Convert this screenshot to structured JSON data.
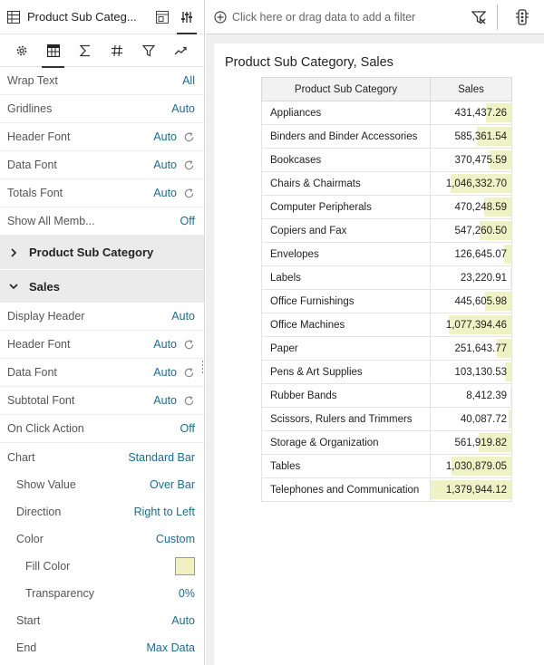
{
  "panel": {
    "title": "Product Sub Categ...",
    "tabs": [
      "settings-icon",
      "table-icon",
      "sigma-icon",
      "hash-icon",
      "filter-icon",
      "trend-icon"
    ],
    "general": [
      {
        "label": "Wrap Text",
        "value": "All",
        "reset": false
      },
      {
        "label": "Gridlines",
        "value": "Auto",
        "reset": false
      },
      {
        "label": "Header Font",
        "value": "Auto",
        "reset": true
      },
      {
        "label": "Data Font",
        "value": "Auto",
        "reset": true
      },
      {
        "label": "Totals Font",
        "value": "Auto",
        "reset": true
      },
      {
        "label": "Show All Memb...",
        "value": "Off",
        "reset": false
      }
    ],
    "section_product": "Product Sub Category",
    "section_sales": "Sales",
    "sales": [
      {
        "label": "Display Header",
        "value": "Auto",
        "reset": false
      },
      {
        "label": "Header Font",
        "value": "Auto",
        "reset": true
      },
      {
        "label": "Data Font",
        "value": "Auto",
        "reset": true
      },
      {
        "label": "Subtotal Font",
        "value": "Auto",
        "reset": true
      },
      {
        "label": "On Click Action",
        "value": "Off",
        "reset": false
      },
      {
        "label": "Chart",
        "value": "Standard Bar",
        "reset": false
      }
    ],
    "chart_opts": [
      {
        "label": "Show Value",
        "value": "Over Bar"
      },
      {
        "label": "Direction",
        "value": "Right to Left"
      },
      {
        "label": "Color",
        "value": "Custom"
      }
    ],
    "fill_color": {
      "label": "Fill Color",
      "color": "#f0f0c0"
    },
    "transparency": {
      "label": "Transparency",
      "value": "0%"
    },
    "range_opts": [
      {
        "label": "Start",
        "value": "Auto"
      },
      {
        "label": "End",
        "value": "Max Data"
      }
    ]
  },
  "filterbar": {
    "hint": "Click here or drag data to add a filter"
  },
  "viz": {
    "title": "Product Sub Category, Sales",
    "col_category": "Product Sub Category",
    "col_sales": "Sales",
    "bar_max": 1379944.12,
    "rows": [
      {
        "cat": "Appliances",
        "display": "431,437.26",
        "value": 431437.26
      },
      {
        "cat": "Binders and Binder Accessories",
        "display": "585,361.54",
        "value": 585361.54
      },
      {
        "cat": "Bookcases",
        "display": "370,475.59",
        "value": 370475.59
      },
      {
        "cat": "Chairs & Chairmats",
        "display": "1,046,332.70",
        "value": 1046332.7
      },
      {
        "cat": "Computer Peripherals",
        "display": "470,248.59",
        "value": 470248.59
      },
      {
        "cat": "Copiers and Fax",
        "display": "547,260.50",
        "value": 547260.5
      },
      {
        "cat": "Envelopes",
        "display": "126,645.07",
        "value": 126645.07
      },
      {
        "cat": "Labels",
        "display": "23,220.91",
        "value": 23220.91
      },
      {
        "cat": "Office Furnishings",
        "display": "445,605.98",
        "value": 445605.98
      },
      {
        "cat": "Office Machines",
        "display": "1,077,394.46",
        "value": 1077394.46
      },
      {
        "cat": "Paper",
        "display": "251,643.77",
        "value": 251643.77
      },
      {
        "cat": "Pens & Art Supplies",
        "display": "103,130.53",
        "value": 103130.53
      },
      {
        "cat": "Rubber Bands",
        "display": "8,412.39",
        "value": 8412.39
      },
      {
        "cat": "Scissors, Rulers and Trimmers",
        "display": "40,087.72",
        "value": 40087.72
      },
      {
        "cat": "Storage & Organization",
        "display": "561,919.82",
        "value": 561919.82
      },
      {
        "cat": "Tables",
        "display": "1,030,879.05",
        "value": 1030879.05
      },
      {
        "cat": "Telephones and Communication",
        "display": "1,379,944.12",
        "value": 1379944.12
      }
    ]
  }
}
